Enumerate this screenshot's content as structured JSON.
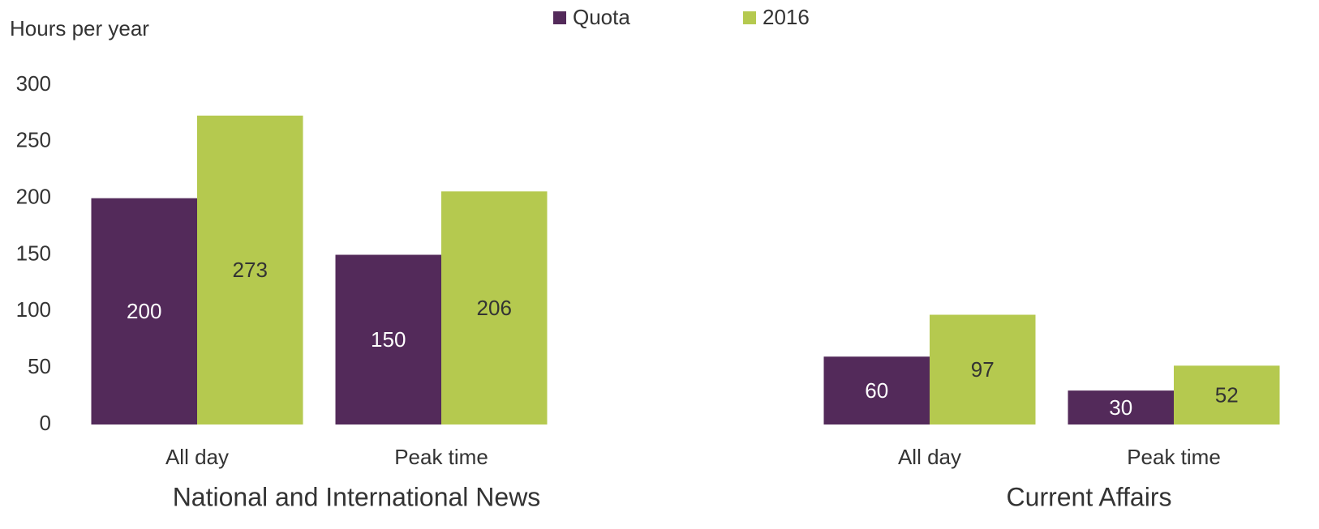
{
  "chart_data": {
    "type": "bar",
    "y_label": "Hours per year",
    "categories": [
      "All day",
      "Peak time",
      null,
      "All day",
      "Peak time"
    ],
    "groups": [
      "National and International News",
      "Current Affairs"
    ],
    "series": [
      {
        "name": "Quota",
        "color": "#532a5a",
        "values": [
          200,
          150,
          null,
          60,
          30
        ]
      },
      {
        "name": "2016",
        "color": "#b5c94f",
        "values": [
          273,
          206,
          null,
          97,
          52
        ]
      }
    ],
    "ylim": [
      0,
      300
    ],
    "yticks": [
      0,
      50,
      100,
      150,
      200,
      250,
      300
    ],
    "grid": false
  }
}
